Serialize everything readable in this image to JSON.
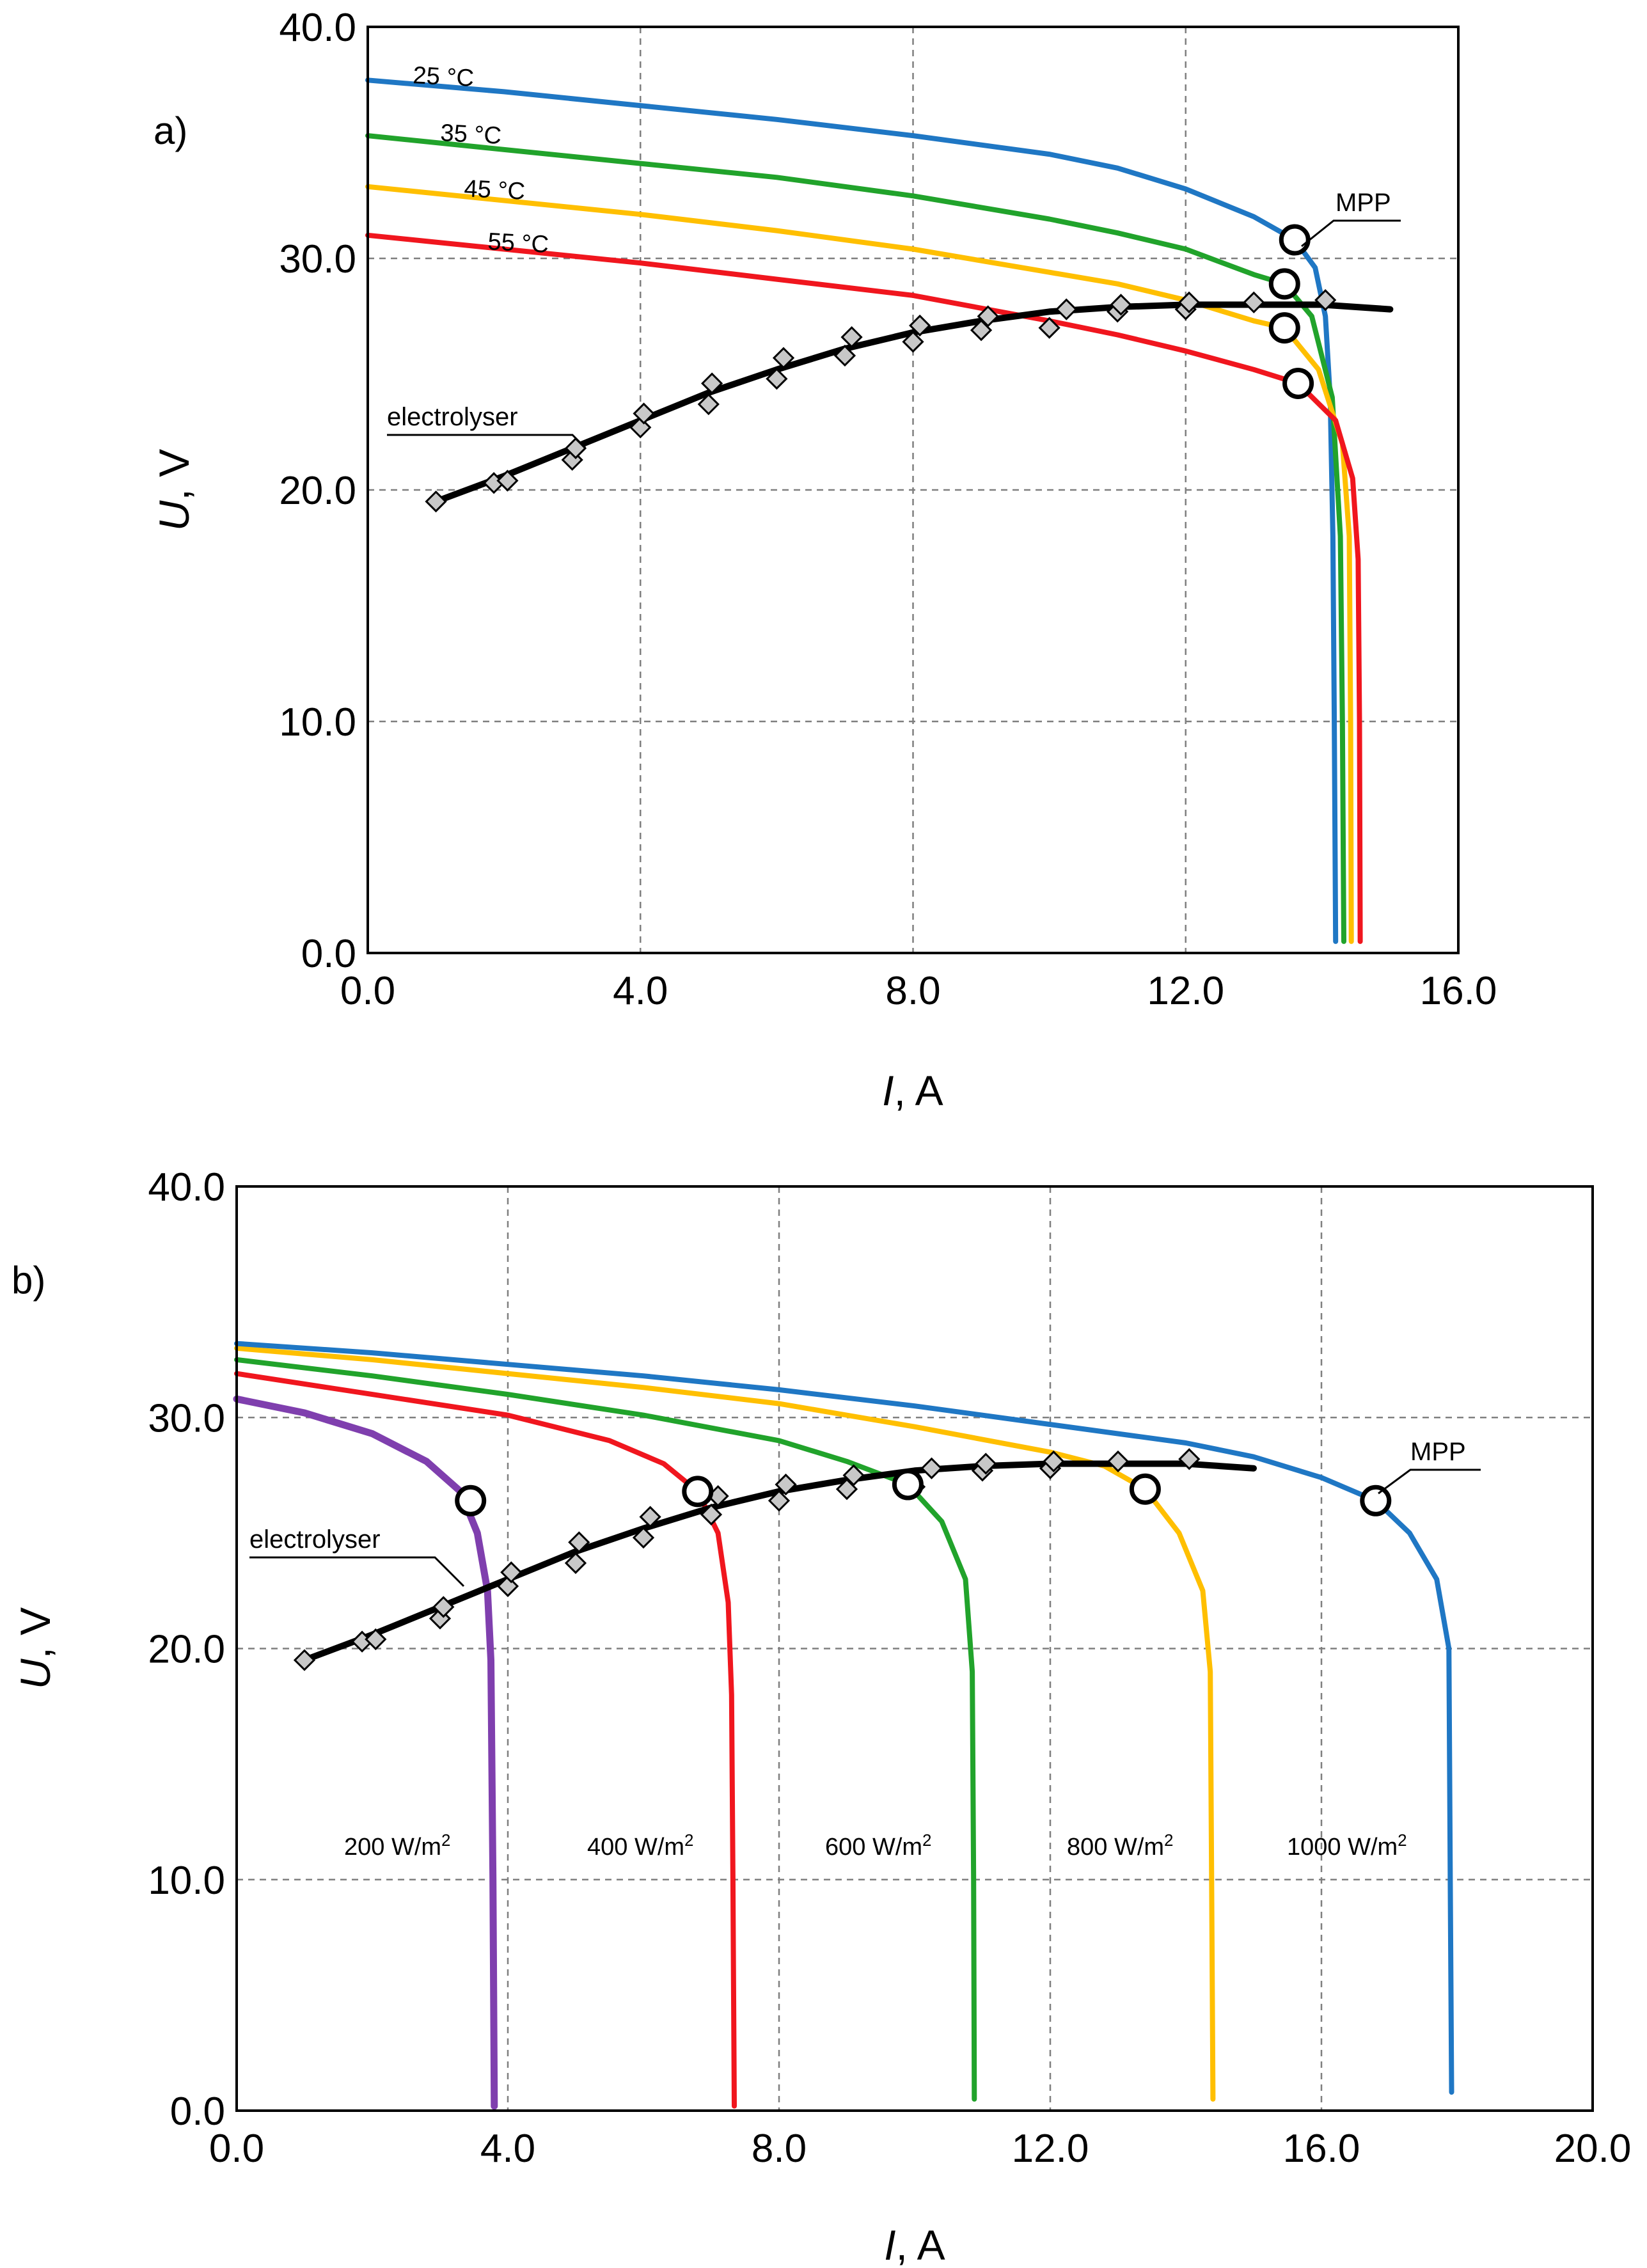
{
  "chart_data": [
    {
      "panel": "a)",
      "type": "line",
      "xlabel_var": "I",
      "xlabel_unit": ", A",
      "ylabel_var": "U",
      "ylabel_unit": ", V",
      "xlim": [
        0,
        16
      ],
      "ylim": [
        0,
        40
      ],
      "xticks": [
        0,
        4,
        8,
        12,
        16
      ],
      "yticks": [
        0,
        10,
        20,
        30,
        40
      ],
      "xtick_labels": [
        "0.0",
        "4.0",
        "8.0",
        "12.0",
        "16.0"
      ],
      "ytick_labels": [
        "0.0",
        "10.0",
        "20.0",
        "30.0",
        "40.0"
      ],
      "grid": true,
      "series": [
        {
          "name": "25 °C",
          "color": "#1f77c4",
          "points": [
            [
              0,
              37.7
            ],
            [
              2,
              37.2
            ],
            [
              4,
              36.6
            ],
            [
              6,
              36.0
            ],
            [
              8,
              35.3
            ],
            [
              10,
              34.5
            ],
            [
              11,
              33.9
            ],
            [
              12,
              33.0
            ],
            [
              13,
              31.8
            ],
            [
              13.6,
              30.8
            ],
            [
              13.9,
              29.6
            ],
            [
              14.05,
              27.5
            ],
            [
              14.12,
              24.0
            ],
            [
              14.16,
              18.0
            ],
            [
              14.18,
              10.0
            ],
            [
              14.2,
              0.5
            ]
          ]
        },
        {
          "name": "35 °C",
          "color": "#21a32b",
          "points": [
            [
              0,
              35.3
            ],
            [
              2,
              34.7
            ],
            [
              4,
              34.1
            ],
            [
              6,
              33.5
            ],
            [
              8,
              32.7
            ],
            [
              10,
              31.7
            ],
            [
              11,
              31.1
            ],
            [
              12,
              30.4
            ],
            [
              13,
              29.3
            ],
            [
              13.45,
              28.9
            ],
            [
              13.85,
              27.5
            ],
            [
              14.15,
              24.0
            ],
            [
              14.27,
              18.0
            ],
            [
              14.3,
              10.0
            ],
            [
              14.32,
              0.5
            ]
          ]
        },
        {
          "name": "45 °C",
          "color": "#ffbf00",
          "points": [
            [
              0,
              33.1
            ],
            [
              2,
              32.5
            ],
            [
              4,
              31.9
            ],
            [
              6,
              31.2
            ],
            [
              8,
              30.4
            ],
            [
              10,
              29.4
            ],
            [
              11,
              28.9
            ],
            [
              12,
              28.2
            ],
            [
              13,
              27.3
            ],
            [
              13.45,
              27.0
            ],
            [
              13.95,
              25.2
            ],
            [
              14.3,
              22.0
            ],
            [
              14.4,
              18.0
            ],
            [
              14.42,
              10.0
            ],
            [
              14.43,
              0.5
            ]
          ]
        },
        {
          "name": "55 °C",
          "color": "#f0161e",
          "points": [
            [
              0,
              31.0
            ],
            [
              2,
              30.4
            ],
            [
              4,
              29.8
            ],
            [
              6,
              29.1
            ],
            [
              8,
              28.4
            ],
            [
              10,
              27.3
            ],
            [
              11,
              26.7
            ],
            [
              12,
              26.0
            ],
            [
              13,
              25.2
            ],
            [
              13.65,
              24.6
            ],
            [
              14.2,
              23.0
            ],
            [
              14.45,
              20.5
            ],
            [
              14.53,
              17.0
            ],
            [
              14.55,
              10.0
            ],
            [
              14.56,
              0.5
            ]
          ]
        }
      ],
      "electrolyser": {
        "label": "electrolyser",
        "fit": [
          [
            1,
            19.5
          ],
          [
            2,
            20.6
          ],
          [
            3,
            21.8
          ],
          [
            4,
            23.0
          ],
          [
            5,
            24.2
          ],
          [
            6,
            25.2
          ],
          [
            7,
            26.1
          ],
          [
            8,
            26.8
          ],
          [
            9,
            27.3
          ],
          [
            10,
            27.7
          ],
          [
            11,
            27.9
          ],
          [
            12,
            28.0
          ],
          [
            13,
            28.0
          ],
          [
            14,
            28.0
          ],
          [
            15,
            27.8
          ]
        ],
        "measured": [
          [
            1,
            19.5
          ],
          [
            1.85,
            20.3
          ],
          [
            2.05,
            20.4
          ],
          [
            3,
            21.3
          ],
          [
            3.05,
            21.8
          ],
          [
            4,
            22.7
          ],
          [
            4.05,
            23.3
          ],
          [
            5,
            23.7
          ],
          [
            5.05,
            24.6
          ],
          [
            6,
            24.8
          ],
          [
            6.1,
            25.7
          ],
          [
            7,
            25.8
          ],
          [
            7.1,
            26.6
          ],
          [
            8,
            26.4
          ],
          [
            8.1,
            27.1
          ],
          [
            9,
            26.9
          ],
          [
            9.1,
            27.5
          ],
          [
            10,
            27.0
          ],
          [
            10.25,
            27.8
          ],
          [
            11,
            27.7
          ],
          [
            11.05,
            28.0
          ],
          [
            12,
            27.8
          ],
          [
            12.05,
            28.1
          ],
          [
            13,
            28.1
          ],
          [
            14.05,
            28.2
          ]
        ]
      },
      "mpp": {
        "label": "MPP",
        "points": [
          [
            13.6,
            30.8
          ],
          [
            13.45,
            28.9
          ],
          [
            13.45,
            27.0
          ],
          [
            13.65,
            24.6
          ]
        ]
      }
    },
    {
      "panel": "b)",
      "type": "line",
      "xlabel_var": "I",
      "xlabel_unit": ", A",
      "ylabel_var": "U",
      "ylabel_unit": ", V",
      "xlim": [
        0,
        20
      ],
      "ylim": [
        0,
        40
      ],
      "xticks": [
        0,
        4,
        8,
        12,
        16,
        20
      ],
      "yticks": [
        0,
        10,
        20,
        30,
        40
      ],
      "xtick_labels": [
        "0.0",
        "4.0",
        "8.0",
        "12.0",
        "16.0",
        "20.0"
      ],
      "ytick_labels": [
        "0.0",
        "10.0",
        "20.0",
        "30.0",
        "40.0"
      ],
      "grid": true,
      "series": [
        {
          "name": "200 W/m",
          "sup": "2",
          "color": "#7f3fae",
          "points": [
            [
              0,
              30.8
            ],
            [
              1,
              30.2
            ],
            [
              2,
              29.3
            ],
            [
              2.8,
              28.1
            ],
            [
              3.3,
              26.8
            ],
            [
              3.55,
              25.0
            ],
            [
              3.7,
              22.5
            ],
            [
              3.75,
              19.5
            ],
            [
              3.78,
              10.0
            ],
            [
              3.8,
              0.2
            ]
          ]
        },
        {
          "name": "400 W/m",
          "sup": "2",
          "color": "#f0161e",
          "points": [
            [
              0,
              31.9
            ],
            [
              2,
              31.0
            ],
            [
              4,
              30.1
            ],
            [
              5.5,
              29.0
            ],
            [
              6.3,
              28.0
            ],
            [
              6.8,
              26.8
            ],
            [
              7.1,
              25.0
            ],
            [
              7.25,
              22.0
            ],
            [
              7.3,
              18.0
            ],
            [
              7.32,
              10.0
            ],
            [
              7.34,
              0.2
            ]
          ]
        },
        {
          "name": "600 W/m",
          "sup": "2",
          "color": "#21a32b",
          "points": [
            [
              0,
              32.5
            ],
            [
              2,
              31.8
            ],
            [
              4,
              31.0
            ],
            [
              6,
              30.1
            ],
            [
              8,
              29.0
            ],
            [
              9,
              28.1
            ],
            [
              9.9,
              27.1
            ],
            [
              10.4,
              25.5
            ],
            [
              10.75,
              23.0
            ],
            [
              10.85,
              19.0
            ],
            [
              10.87,
              10.0
            ],
            [
              10.88,
              0.5
            ]
          ]
        },
        {
          "name": "800 W/m",
          "sup": "2",
          "color": "#ffbf00",
          "points": [
            [
              0,
              33.0
            ],
            [
              2,
              32.5
            ],
            [
              4,
              31.9
            ],
            [
              6,
              31.3
            ],
            [
              8,
              30.6
            ],
            [
              10,
              29.6
            ],
            [
              12,
              28.5
            ],
            [
              12.8,
              27.9
            ],
            [
              13.4,
              26.9
            ],
            [
              13.9,
              25.0
            ],
            [
              14.25,
              22.5
            ],
            [
              14.36,
              19.0
            ],
            [
              14.38,
              10.0
            ],
            [
              14.4,
              0.5
            ]
          ]
        },
        {
          "name": "1000 W/m",
          "sup": "2",
          "color": "#1f77c4",
          "points": [
            [
              0,
              33.2
            ],
            [
              2,
              32.8
            ],
            [
              4,
              32.3
            ],
            [
              6,
              31.8
            ],
            [
              8,
              31.2
            ],
            [
              10,
              30.5
            ],
            [
              12,
              29.7
            ],
            [
              14,
              28.9
            ],
            [
              15,
              28.3
            ],
            [
              16,
              27.4
            ],
            [
              16.8,
              26.4
            ],
            [
              17.3,
              25.0
            ],
            [
              17.7,
              23.0
            ],
            [
              17.88,
              20.0
            ],
            [
              17.9,
              10.0
            ],
            [
              17.92,
              0.8
            ]
          ]
        }
      ],
      "electrolyser": {
        "label": "electrolyser",
        "fit": [
          [
            1,
            19.5
          ],
          [
            2,
            20.6
          ],
          [
            3,
            21.8
          ],
          [
            4,
            23.0
          ],
          [
            5,
            24.2
          ],
          [
            6,
            25.2
          ],
          [
            7,
            26.1
          ],
          [
            8,
            26.8
          ],
          [
            9,
            27.3
          ],
          [
            10,
            27.7
          ],
          [
            11,
            27.9
          ],
          [
            12,
            28.0
          ],
          [
            13,
            28.0
          ],
          [
            14,
            28.0
          ],
          [
            15,
            27.8
          ]
        ],
        "measured": [
          [
            1,
            19.5
          ],
          [
            1.85,
            20.3
          ],
          [
            2.05,
            20.4
          ],
          [
            3,
            21.3
          ],
          [
            3.05,
            21.8
          ],
          [
            4,
            22.7
          ],
          [
            4.05,
            23.3
          ],
          [
            5,
            23.7
          ],
          [
            5.05,
            24.6
          ],
          [
            6,
            24.8
          ],
          [
            6.1,
            25.7
          ],
          [
            7,
            25.8
          ],
          [
            7.1,
            26.6
          ],
          [
            8,
            26.4
          ],
          [
            8.1,
            27.1
          ],
          [
            9,
            26.9
          ],
          [
            9.1,
            27.5
          ],
          [
            10,
            27.0
          ],
          [
            10.25,
            27.8
          ],
          [
            11,
            27.7
          ],
          [
            11.05,
            28.0
          ],
          [
            12,
            27.8
          ],
          [
            12.05,
            28.1
          ],
          [
            13,
            28.1
          ],
          [
            14.05,
            28.2
          ]
        ]
      },
      "mpp": {
        "label": "MPP",
        "points": [
          [
            3.45,
            26.4
          ],
          [
            6.8,
            26.8
          ],
          [
            9.9,
            27.1
          ],
          [
            13.4,
            26.9
          ],
          [
            16.8,
            26.4
          ]
        ]
      }
    }
  ]
}
